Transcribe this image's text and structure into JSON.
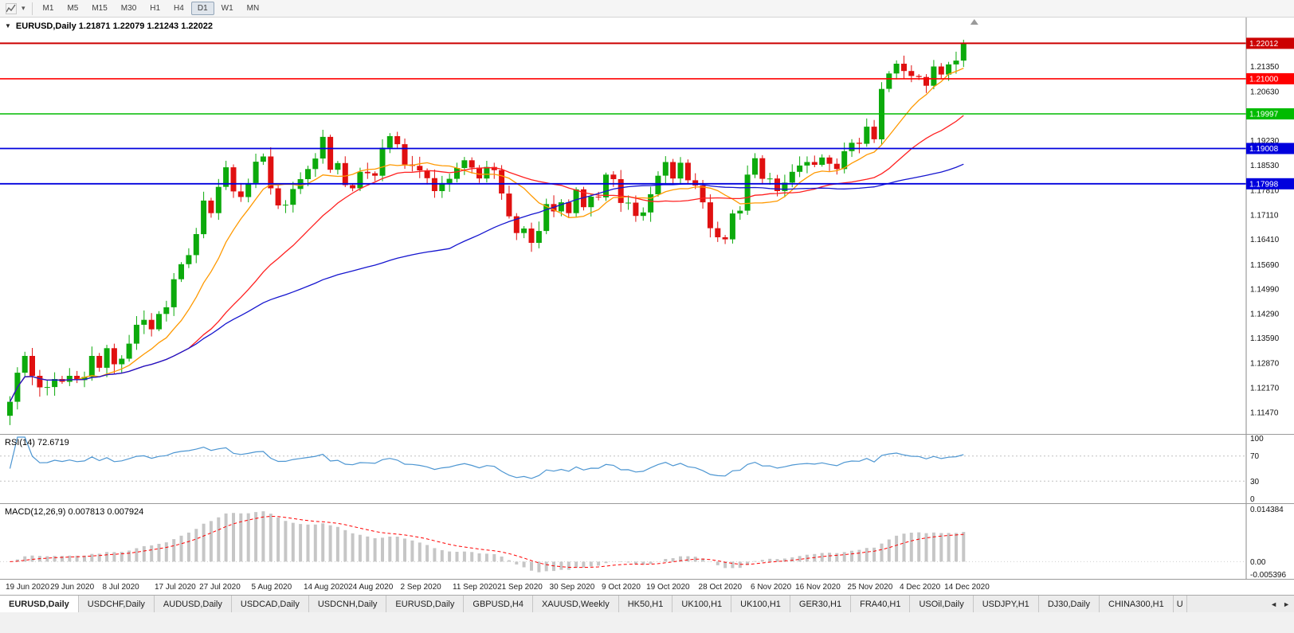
{
  "icons": {
    "dropdown": "▾",
    "collapse": "▼"
  },
  "toolbar": {
    "timeframes": [
      "M1",
      "M5",
      "M15",
      "M30",
      "H1",
      "H4",
      "D1",
      "W1",
      "MN"
    ],
    "active_timeframe": "D1"
  },
  "chart_data": {
    "type": "candlestick",
    "symbol": "EURUSD",
    "period": "Daily",
    "title": "EURUSD,Daily 1.21871 1.22079 1.21243 1.22022",
    "ohlc": {
      "open": "1.21871",
      "high": "1.22079",
      "low": "1.21243",
      "close": "1.22022"
    },
    "colors": {
      "up": "#0caa0c",
      "down": "#e01010",
      "ma_fast": "#ff9900",
      "ma_mid": "#ff2020",
      "ma_slow": "#1515cf",
      "rsi_line": "#4d96d2",
      "macd_hist": "#c6c6c6",
      "macd_signal": "#ff0000"
    },
    "price_axis": {
      "min": 1.1085,
      "max": 1.2275,
      "ticks": [
        "1.22050",
        "1.21350",
        "1.20630",
        "1.19930",
        "1.19230",
        "1.18530",
        "1.17810",
        "1.17110",
        "1.16410",
        "1.15690",
        "1.14990",
        "1.14290",
        "1.13590",
        "1.12870",
        "1.12170",
        "1.11470"
      ]
    },
    "levels": [
      {
        "price": 1.22012,
        "label": "1.22012",
        "color": "#cc0000",
        "width": 2
      },
      {
        "price": 1.21,
        "label": "1.21000",
        "color": "#ff0000",
        "width": 1.6
      },
      {
        "price": 1.19997,
        "label": "1.19997",
        "color": "#00bb00",
        "width": 1.6
      },
      {
        "price": 1.19008,
        "label": "1.19008",
        "color": "#0000dd",
        "width": 1.8
      },
      {
        "price": 1.17998,
        "label": "1.17998",
        "color": "#0000dd",
        "width": 1.8
      }
    ],
    "moving_averages": [
      {
        "period": 10,
        "color_key": "ma_fast"
      },
      {
        "period": 25,
        "color_key": "ma_mid"
      },
      {
        "period": 60,
        "color_key": "ma_slow"
      }
    ],
    "dates": [
      [
        0,
        "19 Jun 2020"
      ],
      [
        6,
        "29 Jun 2020"
      ],
      [
        13,
        "8 Jul 2020"
      ],
      [
        20,
        "17 Jul 2020"
      ],
      [
        26,
        "27 Jul 2020"
      ],
      [
        33,
        "5 Aug 2020"
      ],
      [
        40,
        "14 Aug 2020"
      ],
      [
        46,
        "24 Aug 2020"
      ],
      [
        53,
        "2 Sep 2020"
      ],
      [
        60,
        "11 Sep 2020"
      ],
      [
        66,
        "21 Sep 2020"
      ],
      [
        73,
        "30 Sep 2020"
      ],
      [
        80,
        "9 Oct 2020"
      ],
      [
        86,
        "19 Oct 2020"
      ],
      [
        93,
        "28 Oct 2020"
      ],
      [
        100,
        "6 Nov 2020"
      ],
      [
        106,
        "16 Nov 2020"
      ],
      [
        113,
        "25 Nov 2020"
      ],
      [
        120,
        "4 Dec 2020"
      ],
      [
        126,
        "14 Dec 2020"
      ]
    ],
    "closes": [
      1.1177,
      1.126,
      1.1308,
      1.1251,
      1.1218,
      1.1219,
      1.1242,
      1.1234,
      1.1251,
      1.1239,
      1.1248,
      1.1308,
      1.1274,
      1.133,
      1.1284,
      1.13,
      1.1343,
      1.1397,
      1.1411,
      1.1384,
      1.1428,
      1.1447,
      1.1527,
      1.157,
      1.1596,
      1.1656,
      1.1752,
      1.1716,
      1.1791,
      1.1847,
      1.1778,
      1.1762,
      1.1802,
      1.1863,
      1.1878,
      1.1787,
      1.1738,
      1.174,
      1.1785,
      1.1813,
      1.1842,
      1.1872,
      1.1934,
      1.184,
      1.1859,
      1.1796,
      1.1787,
      1.1834,
      1.183,
      1.1823,
      1.1903,
      1.1936,
      1.1913,
      1.1855,
      1.1851,
      1.1838,
      1.1816,
      1.1779,
      1.1802,
      1.1814,
      1.1845,
      1.1867,
      1.1846,
      1.1815,
      1.1848,
      1.1839,
      1.1772,
      1.1707,
      1.1659,
      1.1672,
      1.1631,
      1.1665,
      1.1742,
      1.1721,
      1.1747,
      1.1716,
      1.1784,
      1.1733,
      1.1763,
      1.1761,
      1.1826,
      1.1813,
      1.1745,
      1.1746,
      1.1708,
      1.1718,
      1.177,
      1.1823,
      1.1862,
      1.1815,
      1.186,
      1.181,
      1.1795,
      1.1747,
      1.1673,
      1.1647,
      1.1641,
      1.1715,
      1.1723,
      1.1826,
      1.1873,
      1.1814,
      1.1815,
      1.1779,
      1.1803,
      1.1834,
      1.1852,
      1.1862,
      1.1854,
      1.1875,
      1.1857,
      1.1842,
      1.1893,
      1.1917,
      1.1914,
      1.1963,
      1.1927,
      1.2071,
      1.2115,
      1.2143,
      1.2122,
      1.2108,
      1.2105,
      1.208,
      1.2135,
      1.2112,
      1.2141,
      1.2152,
      1.2202
    ],
    "rsi": {
      "label": "RSI(14) 72.6719",
      "period": 14,
      "axis": [
        "100",
        "70",
        "30",
        "0"
      ],
      "levels": [
        70,
        30
      ]
    },
    "macd": {
      "label": "MACD(12,26,9) 0.007813 0.007924",
      "fast": 12,
      "slow": 26,
      "signal": 9,
      "axis_top": "0.014384",
      "axis_zero": "0.00",
      "axis_bottom": "-0.005396"
    }
  },
  "tabs": {
    "active_index": 0,
    "items": [
      "EURUSD,Daily",
      "USDCHF,Daily",
      "AUDUSD,Daily",
      "USDCAD,Daily",
      "USDCNH,Daily",
      "EURUSD,Daily",
      "GBPUSD,H4",
      "XAUUSD,Weekly",
      "HK50,H1",
      "UK100,H1",
      "UK100,H1",
      "GER30,H1",
      "FRA40,H1",
      "USOil,Daily",
      "USDJPY,H1",
      "DJ30,Daily",
      "CHINA300,H1",
      "U"
    ],
    "scroll_left": "◄",
    "scroll_right": "►"
  }
}
